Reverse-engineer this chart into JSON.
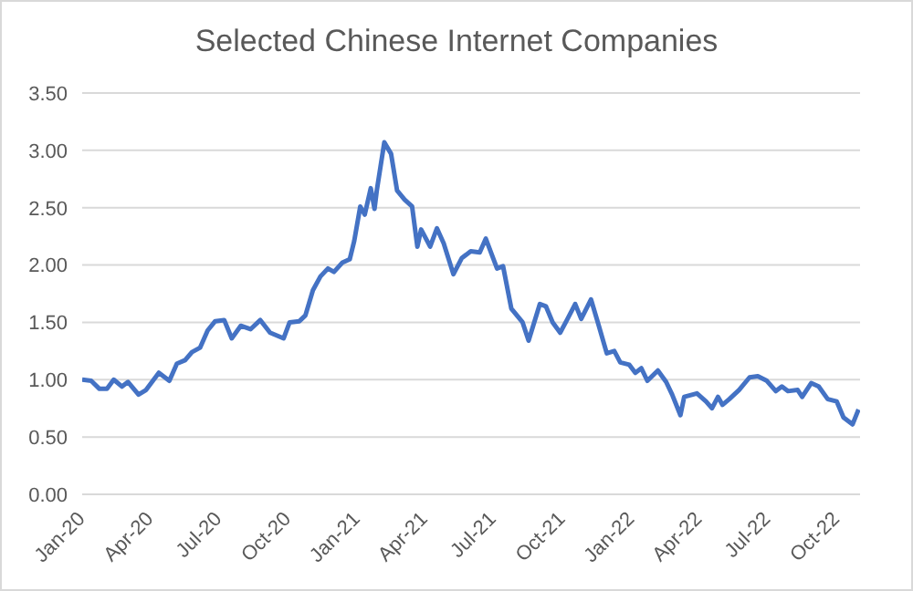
{
  "chart_data": {
    "type": "line",
    "title": "Selected Chinese Internet Companies",
    "x": [
      "2020-01-01",
      "2020-01-13",
      "2020-01-24",
      "2020-02-03",
      "2020-02-12",
      "2020-02-23",
      "2020-03-02",
      "2020-03-16",
      "2020-03-26",
      "2020-04-12",
      "2020-04-26",
      "2020-05-06",
      "2020-05-17",
      "2020-05-26",
      "2020-06-06",
      "2020-06-16",
      "2020-06-26",
      "2020-07-08",
      "2020-07-18",
      "2020-07-30",
      "2020-08-12",
      "2020-08-25",
      "2020-09-07",
      "2020-09-25",
      "2020-10-03",
      "2020-10-16",
      "2020-10-24",
      "2020-11-03",
      "2020-11-13",
      "2020-11-23",
      "2020-12-01",
      "2020-12-12",
      "2020-12-22",
      "2020-12-28",
      "2021-01-05",
      "2021-01-11",
      "2021-01-19",
      "2021-01-24",
      "2021-01-27",
      "2021-02-06",
      "2021-02-15",
      "2021-02-23",
      "2021-03-05",
      "2021-03-15",
      "2021-03-22",
      "2021-03-27",
      "2021-04-08",
      "2021-04-17",
      "2021-04-26",
      "2021-05-09",
      "2021-05-20",
      "2021-06-01",
      "2021-06-13",
      "2021-06-21",
      "2021-07-06",
      "2021-07-14",
      "2021-07-25",
      "2021-08-09",
      "2021-08-17",
      "2021-09-01",
      "2021-09-09",
      "2021-09-18",
      "2021-09-28",
      "2021-10-07",
      "2021-10-18",
      "2021-10-26",
      "2021-11-08",
      "2021-11-18",
      "2021-11-29",
      "2021-12-09",
      "2021-12-17",
      "2021-12-29",
      "2022-01-06",
      "2022-01-14",
      "2022-01-22",
      "2022-02-05",
      "2022-02-16",
      "2022-02-24",
      "2022-03-07",
      "2022-03-12",
      "2022-03-29",
      "2022-04-10",
      "2022-04-18",
      "2022-04-26",
      "2022-05-02",
      "2022-05-11",
      "2022-05-24",
      "2022-06-07",
      "2022-06-18",
      "2022-06-30",
      "2022-07-12",
      "2022-07-20",
      "2022-07-28",
      "2022-08-10",
      "2022-08-16",
      "2022-08-28",
      "2022-09-07",
      "2022-09-19",
      "2022-10-01",
      "2022-10-10",
      "2022-10-22",
      "2022-10-30"
    ],
    "series": [
      {
        "color": "#4472c4",
        "values": [
          1.0,
          0.99,
          0.92,
          0.92,
          1.0,
          0.94,
          0.98,
          0.87,
          0.91,
          1.06,
          0.99,
          1.14,
          1.17,
          1.24,
          1.28,
          1.43,
          1.51,
          1.52,
          1.36,
          1.47,
          1.44,
          1.52,
          1.41,
          1.36,
          1.5,
          1.51,
          1.56,
          1.78,
          1.9,
          1.97,
          1.94,
          2.02,
          2.05,
          2.21,
          2.51,
          2.44,
          2.67,
          2.49,
          2.65,
          3.07,
          2.97,
          2.65,
          2.57,
          2.51,
          2.16,
          2.31,
          2.16,
          2.32,
          2.19,
          1.92,
          2.06,
          2.12,
          2.11,
          2.23,
          1.97,
          1.99,
          1.62,
          1.5,
          1.34,
          1.66,
          1.64,
          1.5,
          1.41,
          1.52,
          1.66,
          1.53,
          1.7,
          1.48,
          1.23,
          1.25,
          1.15,
          1.13,
          1.06,
          1.1,
          0.99,
          1.08,
          0.98,
          0.87,
          0.69,
          0.85,
          0.88,
          0.81,
          0.75,
          0.85,
          0.78,
          0.83,
          0.91,
          1.02,
          1.03,
          0.99,
          0.9,
          0.94,
          0.9,
          0.91,
          0.85,
          0.97,
          0.94,
          0.83,
          0.81,
          0.67,
          0.61,
          0.74
        ]
      }
    ],
    "xlim": [
      "2020-01-01",
      "2022-11-01"
    ],
    "xticks": [
      {
        "value": "2020-01-01",
        "label": "Jan-20"
      },
      {
        "value": "2020-04-01",
        "label": "Apr-20"
      },
      {
        "value": "2020-07-01",
        "label": "Jul-20"
      },
      {
        "value": "2020-10-01",
        "label": "Oct-20"
      },
      {
        "value": "2021-01-01",
        "label": "Jan-21"
      },
      {
        "value": "2021-04-01",
        "label": "Apr-21"
      },
      {
        "value": "2021-07-01",
        "label": "Jul-21"
      },
      {
        "value": "2021-10-01",
        "label": "Oct-21"
      },
      {
        "value": "2022-01-01",
        "label": "Jan-22"
      },
      {
        "value": "2022-04-01",
        "label": "Apr-22"
      },
      {
        "value": "2022-07-01",
        "label": "Jul-22"
      },
      {
        "value": "2022-10-01",
        "label": "Oct-22"
      }
    ],
    "ylim": [
      0,
      3.5
    ],
    "yticks": [
      {
        "value": 0,
        "label": "0.00"
      },
      {
        "value": 0.5,
        "label": "0.50"
      },
      {
        "value": 1,
        "label": "1.00"
      },
      {
        "value": 1.5,
        "label": "1.50"
      },
      {
        "value": 2,
        "label": "2.00"
      },
      {
        "value": 2.5,
        "label": "2.50"
      },
      {
        "value": 3,
        "label": "3.00"
      },
      {
        "value": 3.5,
        "label": "3.50"
      }
    ],
    "grid": "y",
    "legend": false,
    "marker": "none",
    "line_style": "solid"
  }
}
